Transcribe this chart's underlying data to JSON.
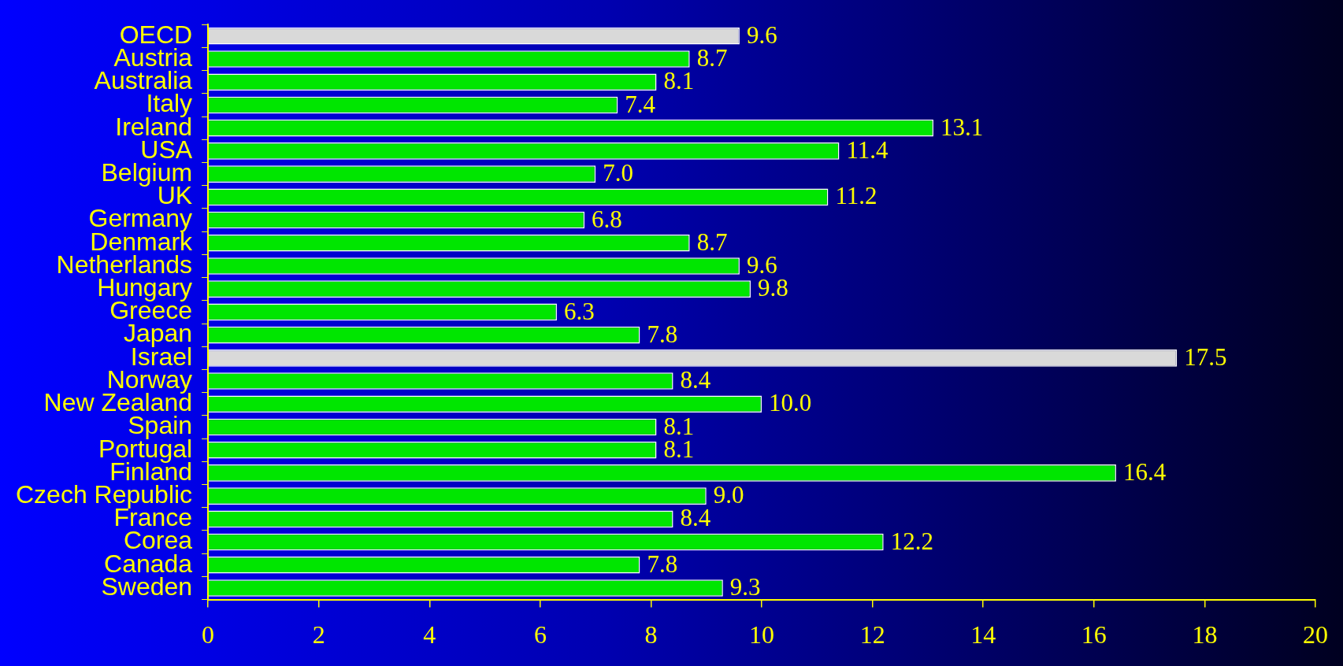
{
  "chart_data": {
    "type": "bar",
    "orientation": "horizontal",
    "categories": [
      "OECD",
      "Austria",
      "Australia",
      "Italy",
      "Ireland",
      "USA",
      "Belgium",
      "UK",
      "Germany",
      "Denmark",
      "Netherlands",
      "Hungary",
      "Greece",
      "Japan",
      "Israel",
      "Norway",
      "New Zealand",
      "Spain",
      "Portugal",
      "Finland",
      "Czech Republic",
      "France",
      "Corea",
      "Canada",
      "Sweden"
    ],
    "values": [
      9.6,
      8.7,
      8.1,
      7.4,
      13.1,
      11.4,
      7.0,
      11.2,
      6.8,
      8.7,
      9.6,
      9.8,
      6.3,
      7.8,
      17.5,
      8.4,
      10.0,
      8.1,
      8.1,
      16.4,
      9.0,
      8.4,
      12.2,
      7.8,
      9.3
    ],
    "value_labels": [
      "9.6",
      "8.7",
      "8.1",
      "7.4",
      "13.1",
      "11.4",
      "7.0",
      "11.2",
      "6.8",
      "8.7",
      "9.6",
      "9.8",
      "6.3",
      "7.8",
      "17.5",
      "8.4",
      "10.0",
      "8.1",
      "8.1",
      "16.4",
      "9.0",
      "8.4",
      "12.2",
      "7.8",
      "9.3"
    ],
    "colors": [
      "#d9d9d9",
      "#00e600",
      "#00e600",
      "#00e600",
      "#00e600",
      "#00e600",
      "#00e600",
      "#00e600",
      "#00e600",
      "#00e600",
      "#00e600",
      "#00e600",
      "#00e600",
      "#00e600",
      "#d9d9d9",
      "#00e600",
      "#00e600",
      "#00e600",
      "#00e600",
      "#00e600",
      "#00e600",
      "#00e600",
      "#00e600",
      "#00e600",
      "#00e600"
    ],
    "xlim": [
      0,
      20
    ],
    "xticks": [
      0,
      2,
      4,
      6,
      8,
      10,
      12,
      14,
      16,
      18,
      20
    ],
    "grid": false,
    "legend": false
  }
}
